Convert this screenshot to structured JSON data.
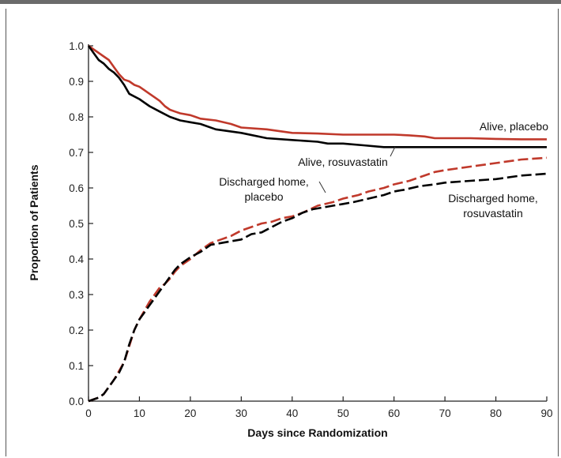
{
  "chart_data": {
    "type": "line",
    "xlabel": "Days since Randomization",
    "ylabel": "Proportion of Patients",
    "xlim": [
      0,
      90
    ],
    "ylim": [
      0.0,
      1.0
    ],
    "x_ticks": [
      0,
      10,
      20,
      30,
      40,
      50,
      60,
      70,
      80,
      90
    ],
    "y_ticks": [
      "0.0",
      "0.1",
      "0.2",
      "0.3",
      "0.4",
      "0.5",
      "0.6",
      "0.7",
      "0.8",
      "0.9",
      "1.0"
    ],
    "grid": false,
    "legend": "none",
    "series": [
      {
        "name": "Alive, placebo",
        "color": "#c0392b",
        "style": "solid",
        "points": [
          [
            0,
            1.0
          ],
          [
            1,
            0.99
          ],
          [
            2,
            0.98
          ],
          [
            3,
            0.97
          ],
          [
            4,
            0.96
          ],
          [
            5,
            0.94
          ],
          [
            6,
            0.92
          ],
          [
            7,
            0.905
          ],
          [
            8,
            0.9
          ],
          [
            9,
            0.89
          ],
          [
            10,
            0.885
          ],
          [
            11,
            0.875
          ],
          [
            12,
            0.865
          ],
          [
            13,
            0.855
          ],
          [
            14,
            0.845
          ],
          [
            15,
            0.83
          ],
          [
            16,
            0.82
          ],
          [
            17,
            0.815
          ],
          [
            18,
            0.81
          ],
          [
            20,
            0.805
          ],
          [
            21,
            0.8
          ],
          [
            22,
            0.795
          ],
          [
            25,
            0.79
          ],
          [
            28,
            0.78
          ],
          [
            30,
            0.77
          ],
          [
            35,
            0.765
          ],
          [
            40,
            0.755
          ],
          [
            45,
            0.753
          ],
          [
            50,
            0.75
          ],
          [
            55,
            0.75
          ],
          [
            60,
            0.75
          ],
          [
            63,
            0.748
          ],
          [
            66,
            0.745
          ],
          [
            68,
            0.74
          ],
          [
            75,
            0.74
          ],
          [
            80,
            0.738
          ],
          [
            85,
            0.737
          ],
          [
            90,
            0.737
          ]
        ]
      },
      {
        "name": "Alive, rosuvastatin",
        "color": "#000000",
        "style": "solid",
        "points": [
          [
            0,
            1.0
          ],
          [
            1,
            0.98
          ],
          [
            2,
            0.96
          ],
          [
            3,
            0.95
          ],
          [
            4,
            0.935
          ],
          [
            5,
            0.925
          ],
          [
            6,
            0.91
          ],
          [
            7,
            0.89
          ],
          [
            8,
            0.865
          ],
          [
            10,
            0.85
          ],
          [
            12,
            0.83
          ],
          [
            14,
            0.815
          ],
          [
            16,
            0.8
          ],
          [
            18,
            0.79
          ],
          [
            20,
            0.785
          ],
          [
            22,
            0.78
          ],
          [
            25,
            0.765
          ],
          [
            30,
            0.755
          ],
          [
            35,
            0.74
          ],
          [
            40,
            0.735
          ],
          [
            45,
            0.73
          ],
          [
            47,
            0.725
          ],
          [
            50,
            0.725
          ],
          [
            54,
            0.72
          ],
          [
            58,
            0.715
          ],
          [
            62,
            0.715
          ],
          [
            70,
            0.715
          ],
          [
            80,
            0.715
          ],
          [
            90,
            0.715
          ]
        ]
      },
      {
        "name": "Discharged home, placebo",
        "color": "#c0392b",
        "style": "dashed",
        "points": [
          [
            0,
            0.0
          ],
          [
            2,
            0.01
          ],
          [
            3,
            0.02
          ],
          [
            4,
            0.04
          ],
          [
            5,
            0.06
          ],
          [
            6,
            0.085
          ],
          [
            7,
            0.11
          ],
          [
            8,
            0.155
          ],
          [
            9,
            0.2
          ],
          [
            10,
            0.23
          ],
          [
            11,
            0.255
          ],
          [
            12,
            0.28
          ],
          [
            13,
            0.3
          ],
          [
            14,
            0.32
          ],
          [
            15,
            0.33
          ],
          [
            16,
            0.345
          ],
          [
            17,
            0.365
          ],
          [
            18,
            0.38
          ],
          [
            20,
            0.4
          ],
          [
            22,
            0.425
          ],
          [
            24,
            0.445
          ],
          [
            26,
            0.455
          ],
          [
            28,
            0.465
          ],
          [
            30,
            0.48
          ],
          [
            32,
            0.49
          ],
          [
            34,
            0.5
          ],
          [
            36,
            0.505
          ],
          [
            38,
            0.515
          ],
          [
            40,
            0.52
          ],
          [
            42,
            0.53
          ],
          [
            45,
            0.55
          ],
          [
            48,
            0.56
          ],
          [
            50,
            0.57
          ],
          [
            53,
            0.58
          ],
          [
            55,
            0.59
          ],
          [
            58,
            0.6
          ],
          [
            60,
            0.61
          ],
          [
            63,
            0.62
          ],
          [
            65,
            0.63
          ],
          [
            68,
            0.645
          ],
          [
            70,
            0.65
          ],
          [
            75,
            0.66
          ],
          [
            80,
            0.67
          ],
          [
            85,
            0.68
          ],
          [
            90,
            0.685
          ]
        ]
      },
      {
        "name": "Discharged home, rosuvastatin",
        "color": "#000000",
        "style": "dashed",
        "points": [
          [
            0,
            0.0
          ],
          [
            2,
            0.01
          ],
          [
            3,
            0.02
          ],
          [
            4,
            0.04
          ],
          [
            5,
            0.06
          ],
          [
            6,
            0.08
          ],
          [
            7,
            0.11
          ],
          [
            8,
            0.16
          ],
          [
            9,
            0.2
          ],
          [
            10,
            0.23
          ],
          [
            11,
            0.25
          ],
          [
            12,
            0.27
          ],
          [
            13,
            0.29
          ],
          [
            14,
            0.31
          ],
          [
            15,
            0.33
          ],
          [
            16,
            0.35
          ],
          [
            17,
            0.37
          ],
          [
            18,
            0.385
          ],
          [
            20,
            0.405
          ],
          [
            22,
            0.42
          ],
          [
            24,
            0.44
          ],
          [
            26,
            0.445
          ],
          [
            28,
            0.45
          ],
          [
            30,
            0.455
          ],
          [
            32,
            0.47
          ],
          [
            34,
            0.475
          ],
          [
            36,
            0.49
          ],
          [
            38,
            0.505
          ],
          [
            40,
            0.515
          ],
          [
            42,
            0.53
          ],
          [
            44,
            0.54
          ],
          [
            46,
            0.545
          ],
          [
            48,
            0.55
          ],
          [
            50,
            0.555
          ],
          [
            52,
            0.56
          ],
          [
            55,
            0.57
          ],
          [
            58,
            0.58
          ],
          [
            60,
            0.59
          ],
          [
            62,
            0.595
          ],
          [
            65,
            0.605
          ],
          [
            68,
            0.61
          ],
          [
            70,
            0.615
          ],
          [
            75,
            0.62
          ],
          [
            80,
            0.625
          ],
          [
            85,
            0.635
          ],
          [
            90,
            0.64
          ]
        ]
      }
    ],
    "annotations": [
      {
        "lines": [
          "Alive, placebo"
        ]
      },
      {
        "lines": [
          "Alive, rosuvastatin"
        ]
      },
      {
        "lines": [
          "Discharged home,",
          "placebo"
        ]
      },
      {
        "lines": [
          "Discharged home,",
          "rosuvastatin"
        ]
      }
    ]
  }
}
